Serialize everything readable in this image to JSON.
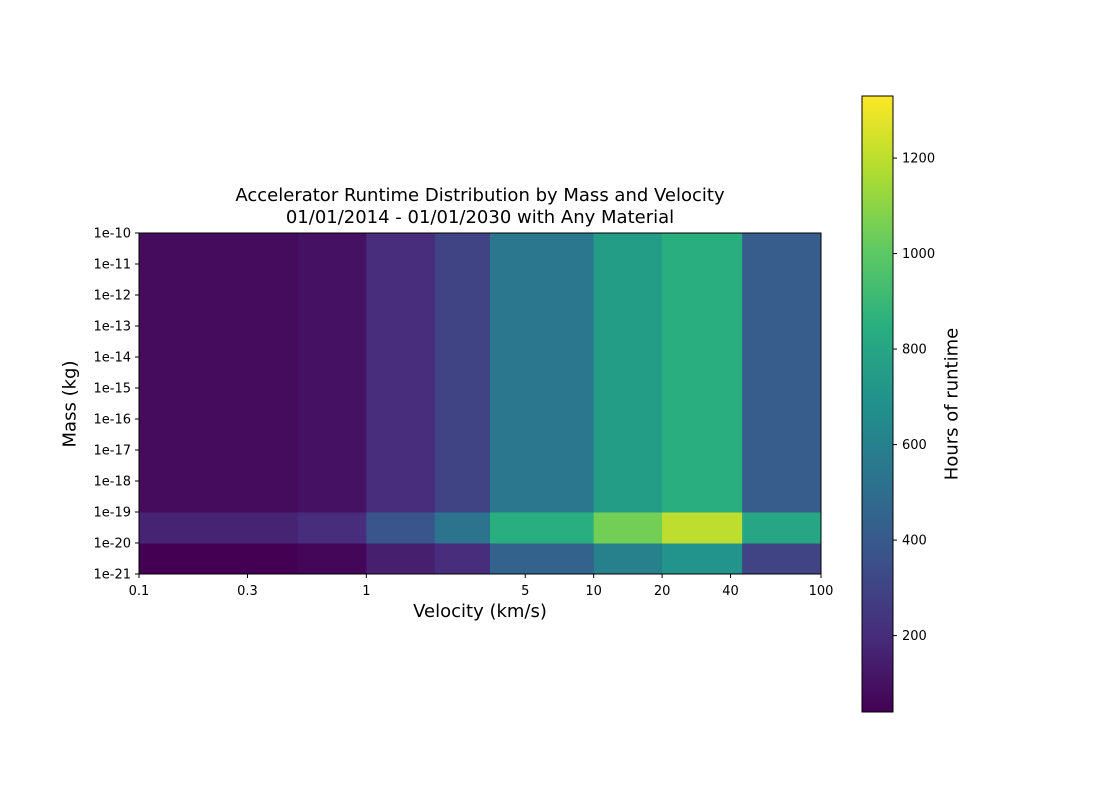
{
  "chart_data": {
    "type": "heatmap",
    "title": "Accelerator Runtime Distribution by Mass and Velocity",
    "subtitle": "01/01/2014 - 01/01/2030 with Any Material",
    "xlabel": "Velocity (km/s)",
    "ylabel": "Mass (kg)",
    "x_scale": "log",
    "y_scale": "log",
    "xlim": [
      0.1,
      100
    ],
    "ylim": [
      1e-21,
      1e-10
    ],
    "x_ticks": [
      0.1,
      0.3,
      1,
      5,
      10,
      20,
      40,
      100
    ],
    "x_tick_labels": [
      "0.1",
      "0.3",
      "1",
      "5",
      "10",
      "20",
      "40",
      "100"
    ],
    "y_ticks": [
      1e-10,
      1e-11,
      1e-12,
      1e-13,
      1e-14,
      1e-15,
      1e-16,
      1e-17,
      1e-18,
      1e-19,
      1e-20,
      1e-21
    ],
    "y_tick_labels": [
      "1e-10",
      "1e-11",
      "1e-12",
      "1e-13",
      "1e-14",
      "1e-15",
      "1e-16",
      "1e-17",
      "1e-18",
      "1e-19",
      "1e-20",
      "1e-21"
    ],
    "x_bin_edges": [
      0.1,
      0.5,
      1,
      2,
      3.5,
      10,
      20,
      45,
      100
    ],
    "y_bin_edges": [
      1e-21,
      1e-20,
      1e-19,
      1e-10
    ],
    "values": [
      [
        40,
        60,
        150,
        200,
        450,
        600,
        700,
        300
      ],
      [
        170,
        200,
        380,
        530,
        850,
        1050,
        1200,
        800
      ],
      [
        80,
        100,
        200,
        300,
        550,
        750,
        850,
        420
      ]
    ],
    "colormap": "viridis",
    "colorbar": {
      "label": "Hours of runtime",
      "range": [
        40,
        1330
      ],
      "ticks": [
        200,
        400,
        600,
        800,
        1000,
        1200
      ],
      "tick_labels": [
        "200",
        "400",
        "600",
        "800",
        "1000",
        "1200"
      ]
    },
    "grid": false
  }
}
